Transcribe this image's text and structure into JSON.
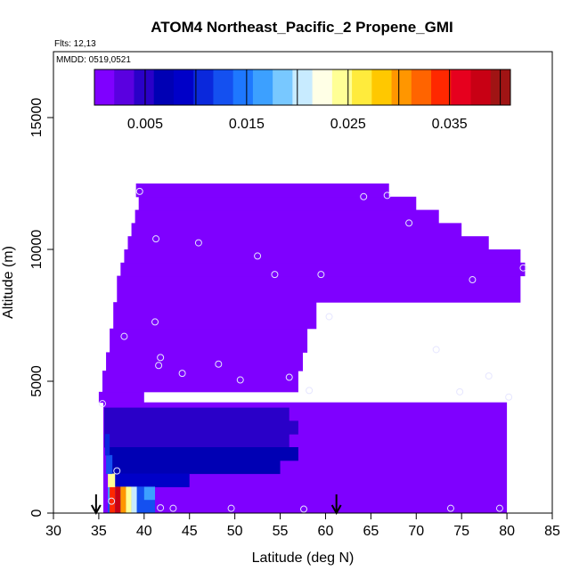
{
  "chart_data": {
    "type": "heatmap",
    "title": "ATOM4 Northeast_Pacific_2 Propene_GMI",
    "notes": [
      "Flts: 12,13",
      "MMDD: 0519,0521"
    ],
    "xlabel": "Latitude (deg N)",
    "ylabel": "Altitude (m)",
    "xlim": [
      30,
      85
    ],
    "ylim": [
      0,
      17500
    ],
    "x_ticks": [
      "30",
      "35",
      "40",
      "45",
      "50",
      "55",
      "60",
      "65",
      "70",
      "75",
      "80",
      "85"
    ],
    "y_ticks": [
      "0",
      "5000",
      "10000",
      "15000"
    ],
    "colorbar": {
      "min": 0,
      "max": 0.041,
      "tick_labels": [
        "0.005",
        "0.015",
        "0.025",
        "0.035"
      ],
      "tick_values": [
        0.005,
        0.015,
        0.025,
        0.035
      ],
      "colors": [
        "#7f00ff",
        "#5a00e0",
        "#2a00c8",
        "#0000b4",
        "#0000c8",
        "#0a28dc",
        "#1450f0",
        "#1e78ff",
        "#3ca0ff",
        "#78c8ff",
        "#c8ebff",
        "#ffffe6",
        "#ffff96",
        "#ffeb3c",
        "#ffc800",
        "#ff9600",
        "#ff6400",
        "#ff2800",
        "#e6001e",
        "#c80014",
        "#a01414"
      ]
    },
    "grid": false,
    "legend": "top",
    "arrows_latitude": [
      34.7,
      61.2
    ],
    "background_value": 0.0005,
    "region_profile": [
      {
        "y": [
          4200,
          4600
        ],
        "x": [
          35,
          40
        ]
      },
      {
        "y": [
          4600,
          5400
        ],
        "x": [
          35.4,
          57
        ]
      },
      {
        "y": [
          5400,
          6100
        ],
        "x": [
          35.8,
          57.5
        ]
      },
      {
        "y": [
          6100,
          7000
        ],
        "x": [
          36.2,
          58
        ]
      },
      {
        "y": [
          7000,
          8000
        ],
        "x": [
          36.6,
          59
        ]
      },
      {
        "y": [
          8000,
          9000
        ],
        "x": [
          37,
          81.5
        ]
      },
      {
        "y": [
          9000,
          9500
        ],
        "x": [
          37.4,
          82
        ]
      },
      {
        "y": [
          9500,
          10000
        ],
        "x": [
          37.8,
          81.5
        ]
      },
      {
        "y": [
          10000,
          10500
        ],
        "x": [
          38.2,
          78
        ]
      },
      {
        "y": [
          10500,
          11000
        ],
        "x": [
          38.6,
          75
        ]
      },
      {
        "y": [
          11000,
          11500
        ],
        "x": [
          39,
          72.5
        ]
      },
      {
        "y": [
          11500,
          12000
        ],
        "x": [
          39.4,
          70
        ]
      },
      {
        "y": [
          12000,
          12500
        ],
        "x": [
          39.1,
          67
        ]
      }
    ],
    "boundary_layer_cells": [
      {
        "y": [
          3500,
          4000
        ],
        "x": [
          35.6,
          56
        ],
        "v": 0.0048
      },
      {
        "y": [
          3000,
          3500
        ],
        "x": [
          35.6,
          57
        ],
        "v": 0.0052
      },
      {
        "y": [
          2500,
          3000
        ],
        "x": [
          35.6,
          56
        ],
        "v": 0.0058
      },
      {
        "y": [
          2000,
          2500
        ],
        "x": [
          36,
          57
        ],
        "v": 0.0065
      },
      {
        "y": [
          1500,
          2000
        ],
        "x": [
          36,
          55
        ],
        "v": 0.0075
      },
      {
        "y": [
          1000,
          1500
        ],
        "x": [
          36,
          45
        ],
        "v": 0.009
      },
      {
        "y": [
          500,
          1000
        ],
        "x": [
          36,
          41.2
        ],
        "v": 0.016
      },
      {
        "y": [
          0,
          500
        ],
        "x": [
          36,
          41.2
        ],
        "v": 0.012
      },
      {
        "y": [
          0,
          1000
        ],
        "x": [
          36.2,
          36.8
        ],
        "v": 0.034
      },
      {
        "y": [
          0,
          1000
        ],
        "x": [
          36.8,
          37.4
        ],
        "v": 0.038
      },
      {
        "y": [
          0,
          1000
        ],
        "x": [
          37.4,
          38.0
        ],
        "v": 0.03
      },
      {
        "y": [
          0,
          1000
        ],
        "x": [
          38.0,
          38.6
        ],
        "v": 0.024
      },
      {
        "y": [
          0,
          1000
        ],
        "x": [
          38.6,
          39.2
        ],
        "v": 0.02
      },
      {
        "y": [
          0,
          1000
        ],
        "x": [
          39.2,
          40.0
        ],
        "v": 0.013
      },
      {
        "y": [
          1000,
          1500
        ],
        "x": [
          36,
          36.8
        ],
        "v": 0.024
      },
      {
        "y": [
          1500,
          2200
        ],
        "x": [
          35.8,
          36.5
        ],
        "v": 0.013
      },
      {
        "y": [
          2200,
          3000
        ],
        "x": [
          35.7,
          36.2
        ],
        "v": 0.011
      }
    ],
    "points": [
      {
        "x": 39.5,
        "y": 12200
      },
      {
        "x": 64.2,
        "y": 12000
      },
      {
        "x": 66.8,
        "y": 12050
      },
      {
        "x": 69.2,
        "y": 11000
      },
      {
        "x": 41.3,
        "y": 10400
      },
      {
        "x": 46.0,
        "y": 10250
      },
      {
        "x": 52.5,
        "y": 9750
      },
      {
        "x": 54.4,
        "y": 9050
      },
      {
        "x": 59.5,
        "y": 9050
      },
      {
        "x": 76.2,
        "y": 8850
      },
      {
        "x": 81.8,
        "y": 9300
      },
      {
        "x": 41.2,
        "y": 7250
      },
      {
        "x": 60.4,
        "y": 7450
      },
      {
        "x": 37.8,
        "y": 6700
      },
      {
        "x": 41.8,
        "y": 5900
      },
      {
        "x": 41.6,
        "y": 5600
      },
      {
        "x": 48.2,
        "y": 5650
      },
      {
        "x": 44.2,
        "y": 5300
      },
      {
        "x": 50.6,
        "y": 5050
      },
      {
        "x": 56.0,
        "y": 5150
      },
      {
        "x": 58.2,
        "y": 4650
      },
      {
        "x": 72.2,
        "y": 6200
      },
      {
        "x": 78.0,
        "y": 5200
      },
      {
        "x": 74.8,
        "y": 4600
      },
      {
        "x": 80.2,
        "y": 4400
      },
      {
        "x": 35.4,
        "y": 4150
      },
      {
        "x": 37.0,
        "y": 1600
      },
      {
        "x": 36.4,
        "y": 450
      },
      {
        "x": 41.8,
        "y": 200
      },
      {
        "x": 43.2,
        "y": 180
      },
      {
        "x": 49.6,
        "y": 180
      },
      {
        "x": 57.6,
        "y": 150
      },
      {
        "x": 73.8,
        "y": 180
      },
      {
        "x": 79.2,
        "y": 180
      }
    ]
  }
}
